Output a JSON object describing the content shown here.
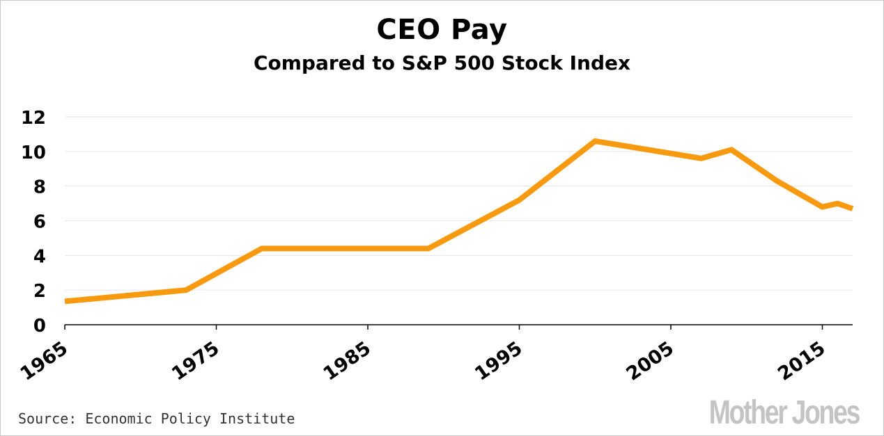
{
  "title": "CEO Pay",
  "subtitle": "Compared to S&P 500 Stock Index",
  "source": "Source: Economic Policy Institute",
  "logo": "Mother Jones",
  "colors": {
    "line": "#f79a10",
    "grid": "#e6e6e6",
    "axis": "#000000",
    "text": "#000000"
  },
  "chart_data": {
    "type": "line",
    "title": "CEO Pay",
    "subtitle": "Compared to S&P 500 Stock Index",
    "xlabel": "",
    "ylabel": "",
    "xlim": [
      1965,
      2017
    ],
    "ylim": [
      0,
      12
    ],
    "yticks": [
      0,
      2,
      4,
      6,
      8,
      10,
      12
    ],
    "xticks": [
      1965,
      1975,
      1985,
      1995,
      2005,
      2015
    ],
    "grid": true,
    "series": [
      {
        "x": [
          1965,
          1973,
          1978,
          1989,
          1995,
          2000,
          2007,
          2009,
          2012,
          2015,
          2016,
          2017
        ],
        "values": [
          1.35,
          2.0,
          4.4,
          4.4,
          7.2,
          10.6,
          9.6,
          10.1,
          8.3,
          6.8,
          7.0,
          6.7
        ]
      }
    ]
  }
}
